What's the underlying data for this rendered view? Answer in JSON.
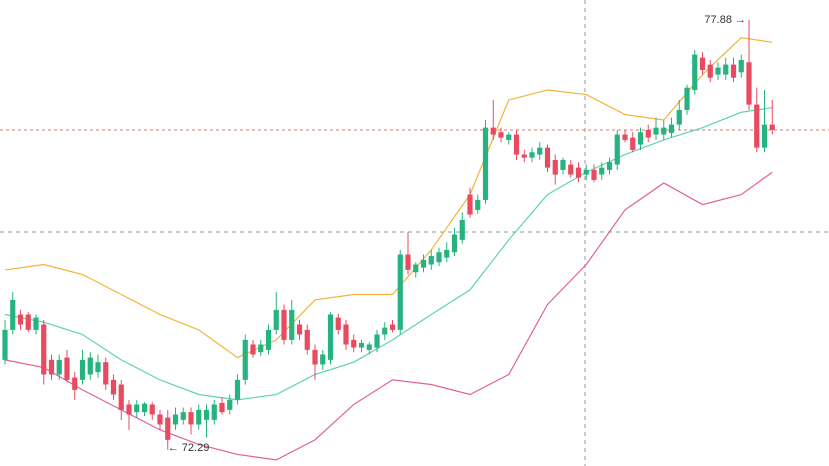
{
  "chart_data": {
    "type": "candlestick",
    "up_color": "#26b37f",
    "down_color": "#e84a5f",
    "ylim": [
      72.08,
      78.14
    ],
    "grid": false,
    "open": [
      73.46,
      73.85,
      74.05,
      74.05,
      73.85,
      73.92,
      73.46,
      73.27,
      73.49,
      73.23,
      73.2,
      73.27,
      73.3,
      73.43,
      73.2,
      73.14,
      72.88,
      72.78,
      72.78,
      72.88,
      72.75,
      72.71,
      72.62,
      72.68,
      72.78,
      72.62,
      72.68,
      72.68,
      72.9,
      72.81,
      72.94,
      73.2,
      73.66,
      73.56,
      73.59,
      73.85,
      74.11,
      73.72,
      73.92,
      73.85,
      73.59,
      73.4,
      73.46,
      74.01,
      73.92,
      73.72,
      73.62,
      73.59,
      73.62,
      73.79,
      73.92,
      73.85,
      74.83,
      74.6,
      74.66,
      74.7,
      74.73,
      74.79,
      74.86,
      75.02,
      75.61,
      75.41,
      75.54,
      76.48,
      76.42,
      76.32,
      76.39,
      76.13,
      76.09,
      76.13,
      76.22,
      76.06,
      75.93,
      76.0,
      75.96,
      75.87,
      75.93,
      75.87,
      75.93,
      76.0,
      76.39,
      76.35,
      76.26,
      76.45,
      76.39,
      76.39,
      76.41,
      76.52,
      76.71,
      76.97,
      77.39,
      77.3,
      77.17,
      77.17,
      77.3,
      77.2,
      77.33,
      76.78,
      76.22,
      76.52
    ],
    "high": [
      73.98,
      74.34,
      74.11,
      74.08,
      74.05,
      73.98,
      73.53,
      73.53,
      73.59,
      73.3,
      73.59,
      73.56,
      73.53,
      73.49,
      73.27,
      73.2,
      72.94,
      72.94,
      72.91,
      72.91,
      72.81,
      72.81,
      72.84,
      72.84,
      72.84,
      72.88,
      72.88,
      72.94,
      72.97,
      73.01,
      73.27,
      73.79,
      73.72,
      73.72,
      73.92,
      74.34,
      74.18,
      74.24,
      73.98,
      73.92,
      73.66,
      73.59,
      74.08,
      74.06,
      73.98,
      73.79,
      73.72,
      73.69,
      73.85,
      73.95,
      73.98,
      74.89,
      75.12,
      74.73,
      74.83,
      74.89,
      74.92,
      74.99,
      75.18,
      75.38,
      75.7,
      75.61,
      76.58,
      76.84,
      76.48,
      76.42,
      76.45,
      76.19,
      76.22,
      76.29,
      76.26,
      76.13,
      76.09,
      76.06,
      76.03,
      76.0,
      76.0,
      76.03,
      76.09,
      76.45,
      76.45,
      76.42,
      76.48,
      76.52,
      76.61,
      76.58,
      76.61,
      76.84,
      77.04,
      77.49,
      77.46,
      77.36,
      77.33,
      77.39,
      77.39,
      77.43,
      77.88,
      77.0,
      76.97,
      76.84
    ],
    "low": [
      73.4,
      73.79,
      73.85,
      73.82,
      73.79,
      73.14,
      73.2,
      73.2,
      73.17,
      72.94,
      73.14,
      73.2,
      73.23,
      73.07,
      72.94,
      72.68,
      72.55,
      72.71,
      72.73,
      72.68,
      72.55,
      72.29,
      72.55,
      72.62,
      72.49,
      72.55,
      72.45,
      72.62,
      72.75,
      72.75,
      72.88,
      73.14,
      73.49,
      73.51,
      73.53,
      73.79,
      73.66,
      73.66,
      73.72,
      73.53,
      73.2,
      73.33,
      73.4,
      73.79,
      73.59,
      73.56,
      73.56,
      73.53,
      73.56,
      73.72,
      73.82,
      73.79,
      74.57,
      74.53,
      74.6,
      74.63,
      74.68,
      74.73,
      74.81,
      74.97,
      75.31,
      75.36,
      75.49,
      76.32,
      76.29,
      76.26,
      76.06,
      76.03,
      76.03,
      76.06,
      75.9,
      75.74,
      75.87,
      75.83,
      75.77,
      75.8,
      75.77,
      75.8,
      75.87,
      75.93,
      76.29,
      76.16,
      76.19,
      76.29,
      76.32,
      76.32,
      76.35,
      76.45,
      76.65,
      76.91,
      77.17,
      77.07,
      77.1,
      77.1,
      77.07,
      77.13,
      76.71,
      76.16,
      76.16,
      76.39
    ],
    "close": [
      73.85,
      74.24,
      73.92,
      73.85,
      74.01,
      73.27,
      73.27,
      73.46,
      73.2,
      73.07,
      73.46,
      73.49,
      73.43,
      73.14,
      73.01,
      72.81,
      72.75,
      72.88,
      72.89,
      72.75,
      72.62,
      72.42,
      72.75,
      72.78,
      72.62,
      72.81,
      72.81,
      72.88,
      72.78,
      72.94,
      73.2,
      73.72,
      73.53,
      73.66,
      73.85,
      74.11,
      73.72,
      74.11,
      73.79,
      73.59,
      73.4,
      73.53,
      74.05,
      73.85,
      73.66,
      73.62,
      73.68,
      73.66,
      73.79,
      73.88,
      73.85,
      74.83,
      74.63,
      74.7,
      74.76,
      74.81,
      74.86,
      74.89,
      75.09,
      75.28,
      75.35,
      75.54,
      76.48,
      76.39,
      76.35,
      76.39,
      76.13,
      76.09,
      76.16,
      76.22,
      75.96,
      75.87,
      76.06,
      75.87,
      75.83,
      75.93,
      75.8,
      75.96,
      76.03,
      76.39,
      76.32,
      76.19,
      76.42,
      76.35,
      76.48,
      76.48,
      76.52,
      76.71,
      77.0,
      77.43,
      77.23,
      77.13,
      77.26,
      77.3,
      77.13,
      77.36,
      76.78,
      76.22,
      76.52,
      76.45
    ],
    "lines": [
      {
        "color": "#f3b23a",
        "x": [
          0,
          5,
          10,
          15,
          20,
          25,
          30,
          35,
          40,
          45,
          50,
          55,
          60,
          65,
          70,
          75,
          80,
          85,
          90,
          95,
          99
        ],
        "values": [
          74.63,
          74.7,
          74.57,
          74.31,
          74.05,
          73.85,
          73.49,
          73.72,
          74.24,
          74.31,
          74.31,
          74.89,
          75.61,
          76.84,
          76.97,
          76.91,
          76.65,
          76.58,
          77.17,
          77.65,
          77.59
        ]
      },
      {
        "color": "#5fd3b0",
        "x": [
          0,
          5,
          10,
          15,
          20,
          25,
          30,
          35,
          40,
          45,
          50,
          55,
          60,
          65,
          70,
          75,
          80,
          85,
          90,
          95,
          99
        ],
        "values": [
          74.05,
          73.95,
          73.79,
          73.46,
          73.2,
          73.01,
          72.94,
          73.01,
          73.27,
          73.43,
          73.72,
          74.05,
          74.37,
          75.02,
          75.61,
          75.9,
          76.13,
          76.32,
          76.48,
          76.68,
          76.74
        ]
      },
      {
        "color": "#e0609e",
        "x": [
          0,
          5,
          10,
          15,
          20,
          25,
          30,
          35,
          40,
          45,
          50,
          55,
          60,
          65,
          70,
          75,
          80,
          85,
          90,
          95,
          99
        ],
        "values": [
          73.46,
          73.36,
          73.07,
          72.81,
          72.55,
          72.36,
          72.23,
          72.16,
          72.42,
          72.88,
          73.2,
          73.14,
          73.01,
          73.27,
          74.18,
          74.7,
          75.41,
          75.76,
          75.48,
          75.61,
          75.9
        ]
      }
    ],
    "annotations": {
      "high_label": "77.88 →",
      "low_label": "← 72.29"
    }
  }
}
